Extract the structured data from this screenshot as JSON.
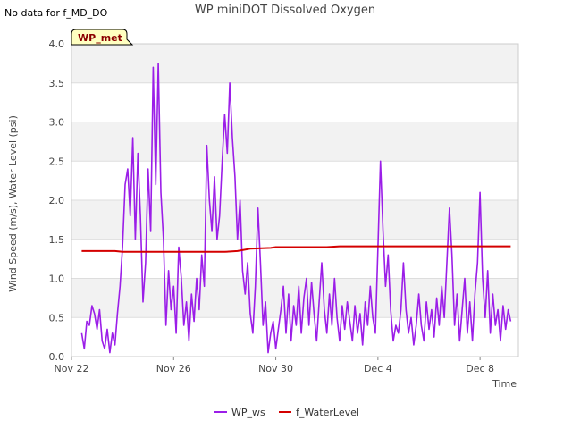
{
  "title": "WP miniDOT Dissolved Oxygen",
  "no_data_note": "No data for f_MD_DO",
  "badge": "WP_met",
  "chart_data": {
    "type": "line",
    "title": "WP miniDOT Dissolved Oxygen",
    "xlabel": "Time",
    "ylabel": "Wind Speed (m/s), Water Level (psi)",
    "x_range_days_from_nov22": [
      0,
      17.5
    ],
    "ylim": [
      0,
      4.0
    ],
    "x_ticks": [
      {
        "day": 0,
        "label": "Nov 22"
      },
      {
        "day": 4,
        "label": "Nov 26"
      },
      {
        "day": 8,
        "label": "Nov 30"
      },
      {
        "day": 12,
        "label": "Dec 4"
      },
      {
        "day": 16,
        "label": "Dec 8"
      }
    ],
    "y_ticks": [
      "0.0",
      "0.5",
      "1.0",
      "1.5",
      "2.0",
      "2.5",
      "3.0",
      "3.5",
      "4.0"
    ],
    "grid": true,
    "legend_position": "bottom",
    "series": [
      {
        "name": "WP_ws",
        "color": "#9b1ee8",
        "points": [
          [
            0.4,
            0.3
          ],
          [
            0.5,
            0.1
          ],
          [
            0.6,
            0.45
          ],
          [
            0.7,
            0.4
          ],
          [
            0.8,
            0.65
          ],
          [
            0.9,
            0.55
          ],
          [
            1.0,
            0.35
          ],
          [
            1.1,
            0.6
          ],
          [
            1.2,
            0.2
          ],
          [
            1.3,
            0.1
          ],
          [
            1.4,
            0.35
          ],
          [
            1.5,
            0.05
          ],
          [
            1.6,
            0.3
          ],
          [
            1.7,
            0.15
          ],
          [
            1.8,
            0.55
          ],
          [
            1.9,
            0.9
          ],
          [
            2.0,
            1.4
          ],
          [
            2.1,
            2.2
          ],
          [
            2.2,
            2.4
          ],
          [
            2.3,
            1.8
          ],
          [
            2.4,
            2.8
          ],
          [
            2.5,
            1.5
          ],
          [
            2.6,
            2.6
          ],
          [
            2.7,
            1.8
          ],
          [
            2.8,
            0.7
          ],
          [
            2.9,
            1.2
          ],
          [
            3.0,
            2.4
          ],
          [
            3.1,
            1.6
          ],
          [
            3.2,
            3.7
          ],
          [
            3.3,
            2.2
          ],
          [
            3.4,
            3.75
          ],
          [
            3.5,
            2.1
          ],
          [
            3.6,
            1.5
          ],
          [
            3.7,
            0.4
          ],
          [
            3.8,
            1.1
          ],
          [
            3.9,
            0.6
          ],
          [
            4.0,
            0.9
          ],
          [
            4.1,
            0.3
          ],
          [
            4.2,
            1.4
          ],
          [
            4.3,
            1.0
          ],
          [
            4.4,
            0.4
          ],
          [
            4.5,
            0.7
          ],
          [
            4.6,
            0.2
          ],
          [
            4.7,
            0.8
          ],
          [
            4.8,
            0.45
          ],
          [
            4.9,
            1.0
          ],
          [
            5.0,
            0.6
          ],
          [
            5.1,
            1.3
          ],
          [
            5.2,
            0.9
          ],
          [
            5.3,
            2.7
          ],
          [
            5.4,
            2.0
          ],
          [
            5.5,
            1.6
          ],
          [
            5.6,
            2.3
          ],
          [
            5.7,
            1.5
          ],
          [
            5.8,
            1.8
          ],
          [
            5.9,
            2.5
          ],
          [
            6.0,
            3.1
          ],
          [
            6.1,
            2.6
          ],
          [
            6.2,
            3.5
          ],
          [
            6.3,
            2.8
          ],
          [
            6.4,
            2.3
          ],
          [
            6.5,
            1.5
          ],
          [
            6.6,
            2.0
          ],
          [
            6.7,
            1.1
          ],
          [
            6.8,
            0.8
          ],
          [
            6.9,
            1.2
          ],
          [
            7.0,
            0.55
          ],
          [
            7.1,
            0.3
          ],
          [
            7.2,
            0.9
          ],
          [
            7.3,
            1.9
          ],
          [
            7.4,
            1.2
          ],
          [
            7.5,
            0.4
          ],
          [
            7.6,
            0.7
          ],
          [
            7.7,
            0.05
          ],
          [
            7.8,
            0.3
          ],
          [
            7.9,
            0.45
          ],
          [
            8.0,
            0.1
          ],
          [
            8.1,
            0.35
          ],
          [
            8.2,
            0.6
          ],
          [
            8.3,
            0.9
          ],
          [
            8.4,
            0.3
          ],
          [
            8.5,
            0.8
          ],
          [
            8.6,
            0.2
          ],
          [
            8.7,
            0.65
          ],
          [
            8.8,
            0.4
          ],
          [
            8.9,
            0.9
          ],
          [
            9.0,
            0.3
          ],
          [
            9.1,
            0.75
          ],
          [
            9.2,
            1.0
          ],
          [
            9.3,
            0.4
          ],
          [
            9.4,
            0.95
          ],
          [
            9.5,
            0.55
          ],
          [
            9.6,
            0.2
          ],
          [
            9.7,
            0.7
          ],
          [
            9.8,
            1.2
          ],
          [
            9.9,
            0.6
          ],
          [
            10.0,
            0.3
          ],
          [
            10.1,
            0.8
          ],
          [
            10.2,
            0.4
          ],
          [
            10.3,
            1.0
          ],
          [
            10.4,
            0.5
          ],
          [
            10.5,
            0.2
          ],
          [
            10.6,
            0.65
          ],
          [
            10.7,
            0.35
          ],
          [
            10.8,
            0.7
          ],
          [
            10.9,
            0.45
          ],
          [
            11.0,
            0.2
          ],
          [
            11.1,
            0.65
          ],
          [
            11.2,
            0.3
          ],
          [
            11.3,
            0.55
          ],
          [
            11.4,
            0.15
          ],
          [
            11.5,
            0.7
          ],
          [
            11.6,
            0.4
          ],
          [
            11.7,
            0.9
          ],
          [
            11.8,
            0.5
          ],
          [
            11.9,
            0.3
          ],
          [
            12.0,
            1.4
          ],
          [
            12.1,
            2.5
          ],
          [
            12.2,
            1.6
          ],
          [
            12.3,
            0.9
          ],
          [
            12.4,
            1.3
          ],
          [
            12.5,
            0.6
          ],
          [
            12.6,
            0.2
          ],
          [
            12.7,
            0.4
          ],
          [
            12.8,
            0.3
          ],
          [
            12.9,
            0.6
          ],
          [
            13.0,
            1.2
          ],
          [
            13.1,
            0.6
          ],
          [
            13.2,
            0.3
          ],
          [
            13.3,
            0.5
          ],
          [
            13.4,
            0.15
          ],
          [
            13.5,
            0.4
          ],
          [
            13.6,
            0.8
          ],
          [
            13.7,
            0.4
          ],
          [
            13.8,
            0.2
          ],
          [
            13.9,
            0.7
          ],
          [
            14.0,
            0.35
          ],
          [
            14.1,
            0.6
          ],
          [
            14.2,
            0.25
          ],
          [
            14.3,
            0.75
          ],
          [
            14.4,
            0.4
          ],
          [
            14.5,
            0.9
          ],
          [
            14.6,
            0.5
          ],
          [
            14.7,
            1.2
          ],
          [
            14.8,
            1.9
          ],
          [
            14.9,
            1.3
          ],
          [
            15.0,
            0.4
          ],
          [
            15.1,
            0.8
          ],
          [
            15.2,
            0.2
          ],
          [
            15.3,
            0.6
          ],
          [
            15.4,
            1.0
          ],
          [
            15.5,
            0.3
          ],
          [
            15.6,
            0.7
          ],
          [
            15.7,
            0.2
          ],
          [
            15.8,
            0.8
          ],
          [
            15.9,
            1.2
          ],
          [
            16.0,
            2.1
          ],
          [
            16.1,
            1.0
          ],
          [
            16.2,
            0.5
          ],
          [
            16.3,
            1.1
          ],
          [
            16.4,
            0.3
          ],
          [
            16.5,
            0.8
          ],
          [
            16.6,
            0.4
          ],
          [
            16.7,
            0.6
          ],
          [
            16.8,
            0.2
          ],
          [
            16.9,
            0.65
          ],
          [
            17.0,
            0.35
          ],
          [
            17.1,
            0.6
          ],
          [
            17.2,
            0.45
          ]
        ]
      },
      {
        "name": "f_WaterLevel",
        "color": "#d40000",
        "points": [
          [
            0.4,
            1.35
          ],
          [
            1.7,
            1.35
          ],
          [
            2.0,
            1.34
          ],
          [
            4.0,
            1.34
          ],
          [
            6.0,
            1.34
          ],
          [
            6.5,
            1.35
          ],
          [
            7.0,
            1.38
          ],
          [
            7.8,
            1.39
          ],
          [
            8.0,
            1.4
          ],
          [
            10.0,
            1.4
          ],
          [
            10.5,
            1.41
          ],
          [
            12.0,
            1.41
          ],
          [
            14.0,
            1.41
          ],
          [
            16.0,
            1.41
          ],
          [
            17.2,
            1.41
          ]
        ]
      }
    ]
  }
}
